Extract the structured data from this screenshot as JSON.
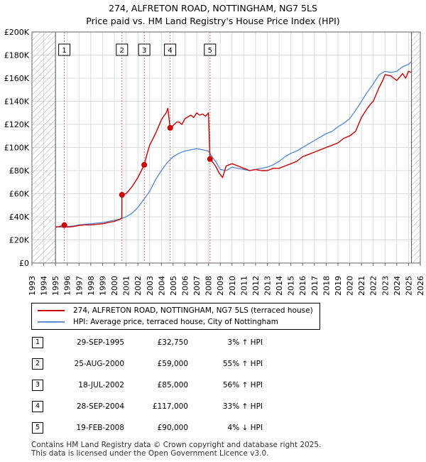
{
  "title": "274, ALFRETON ROAD, NOTTINGHAM, NG7 5LS",
  "subtitle": "Price paid vs. HM Land Registry's House Price Index (HPI)",
  "colors": {
    "property": "#cc0000",
    "hpi": "#5b8fd4",
    "grid": "#dddddd",
    "hatch": "#aaaaaa",
    "marker_line": "#e06070"
  },
  "chart_data": {
    "type": "line",
    "x_range": [
      1993.0,
      2026.0
    ],
    "ylim": [
      0,
      200000
    ],
    "y_ticks": [
      0,
      20000,
      40000,
      60000,
      80000,
      100000,
      120000,
      140000,
      160000,
      180000,
      200000
    ],
    "y_tick_labels": [
      "£0",
      "£20K",
      "£40K",
      "£60K",
      "£80K",
      "£100K",
      "£120K",
      "£140K",
      "£160K",
      "£180K",
      "£200K"
    ],
    "x_tick_labels": [
      "1993",
      "1994",
      "1995",
      "1996",
      "1997",
      "1998",
      "1999",
      "2000",
      "2001",
      "2002",
      "2003",
      "2004",
      "2005",
      "2006",
      "2007",
      "2008",
      "2009",
      "2010",
      "2011",
      "2012",
      "2013",
      "2014",
      "2015",
      "2016",
      "2017",
      "2018",
      "2019",
      "2020",
      "2021",
      "2022",
      "2023",
      "2024",
      "2025",
      "2026"
    ],
    "hatched_ranges": [
      [
        1993.0,
        1995.0
      ],
      [
        2025.25,
        2026.0
      ]
    ],
    "series": [
      {
        "name": "274, ALFRETON ROAD, NOTTINGHAM, NG7 5LS (terraced house)",
        "x": [
          1995.0,
          1995.3,
          1995.75,
          1996.0,
          1996.5,
          1997.0,
          1997.5,
          1998.0,
          1998.5,
          1999.0,
          1999.5,
          2000.0,
          2000.5,
          2000.64,
          2000.65,
          2001.0,
          2001.5,
          2002.0,
          2002.54,
          2002.8,
          2003.0,
          2003.5,
          2003.75,
          2004.0,
          2004.2,
          2004.4,
          2004.55,
          2004.74,
          2005.0,
          2005.3,
          2005.5,
          2005.75,
          2006.0,
          2006.5,
          2006.75,
          2007.0,
          2007.25,
          2007.5,
          2007.75,
          2008.0,
          2008.13,
          2008.3,
          2008.6,
          2008.9,
          2009.2,
          2009.5,
          2010.0,
          2010.5,
          2011.0,
          2011.5,
          2012.0,
          2012.5,
          2013.0,
          2013.5,
          2014.0,
          2014.5,
          2015.0,
          2015.5,
          2016.0,
          2016.5,
          2017.0,
          2017.5,
          2018.0,
          2018.5,
          2019.0,
          2019.5,
          2020.0,
          2020.5,
          2021.0,
          2021.5,
          2021.8,
          2022.0,
          2022.5,
          2022.8,
          2023.0,
          2023.5,
          2023.75,
          2024.0,
          2024.5,
          2024.75,
          2025.0,
          2025.2
        ],
        "y": [
          31000,
          31500,
          32750,
          31000,
          31500,
          32500,
          33000,
          33000,
          33500,
          34000,
          35000,
          36000,
          38000,
          39000,
          59000,
          60000,
          66000,
          74000,
          85000,
          95000,
          102000,
          112000,
          118000,
          124000,
          127000,
          130000,
          134000,
          117000,
          119000,
          122000,
          122000,
          120000,
          125000,
          128000,
          126000,
          130000,
          128000,
          129000,
          127000,
          130000,
          90000,
          88000,
          84000,
          78000,
          74000,
          84000,
          86000,
          84000,
          82000,
          80000,
          81000,
          80000,
          80000,
          82000,
          82000,
          84000,
          86000,
          88000,
          92000,
          94000,
          96000,
          98000,
          100000,
          102000,
          104000,
          108000,
          110000,
          114000,
          126000,
          134000,
          138000,
          140000,
          152000,
          158000,
          163000,
          162000,
          160000,
          158000,
          164000,
          160000,
          166000,
          165000
        ]
      },
      {
        "name": "HPI: Average price, terraced house, City of Nottingham",
        "x": [
          1995.0,
          1995.5,
          1996.0,
          1996.5,
          1997.0,
          1997.5,
          1998.0,
          1998.5,
          1999.0,
          1999.5,
          2000.0,
          2000.5,
          2001.0,
          2001.5,
          2002.0,
          2002.5,
          2003.0,
          2003.5,
          2004.0,
          2004.5,
          2005.0,
          2005.5,
          2006.0,
          2006.5,
          2007.0,
          2007.5,
          2008.0,
          2008.3,
          2008.6,
          2009.0,
          2009.5,
          2010.0,
          2010.5,
          2011.0,
          2011.5,
          2012.0,
          2012.5,
          2013.0,
          2013.5,
          2014.0,
          2014.5,
          2015.0,
          2015.5,
          2016.0,
          2016.5,
          2017.0,
          2017.5,
          2018.0,
          2018.5,
          2019.0,
          2019.5,
          2020.0,
          2020.5,
          2021.0,
          2021.5,
          2022.0,
          2022.5,
          2023.0,
          2023.5,
          2024.0,
          2024.5,
          2025.0,
          2025.2
        ],
        "y": [
          31500,
          31000,
          31500,
          32000,
          33000,
          33500,
          34000,
          34500,
          35000,
          36000,
          37000,
          38000,
          40000,
          43000,
          48000,
          55000,
          62000,
          72000,
          80000,
          87000,
          92000,
          95000,
          97000,
          98000,
          99000,
          98000,
          97000,
          92000,
          88000,
          81000,
          80000,
          83000,
          82000,
          81000,
          80000,
          81000,
          82000,
          83000,
          85000,
          88000,
          92000,
          95000,
          97000,
          100000,
          103000,
          106000,
          109000,
          112000,
          114000,
          118000,
          121000,
          125000,
          132000,
          140000,
          148000,
          155000,
          163000,
          166000,
          165000,
          166000,
          170000,
          172000,
          174000
        ]
      }
    ],
    "sales": [
      {
        "id": "1",
        "x": 1995.75,
        "y": 32750
      },
      {
        "id": "2",
        "x": 2000.65,
        "y": 59000
      },
      {
        "id": "3",
        "x": 2002.54,
        "y": 85000
      },
      {
        "id": "4",
        "x": 2004.74,
        "y": 117000
      },
      {
        "id": "5",
        "x": 2008.13,
        "y": 90000
      }
    ]
  },
  "legend": [
    {
      "label": "274, ALFRETON ROAD, NOTTINGHAM, NG7 5LS (terraced house)"
    },
    {
      "label": "HPI: Average price, terraced house, City of Nottingham"
    }
  ],
  "table": [
    {
      "num": "1",
      "date": "29-SEP-1995",
      "price": "£32,750",
      "hpi": "3% ↑ HPI"
    },
    {
      "num": "2",
      "date": "25-AUG-2000",
      "price": "£59,000",
      "hpi": "55% ↑ HPI"
    },
    {
      "num": "3",
      "date": "18-JUL-2002",
      "price": "£85,000",
      "hpi": "56% ↑ HPI"
    },
    {
      "num": "4",
      "date": "28-SEP-2004",
      "price": "£117,000",
      "hpi": "33% ↑ HPI"
    },
    {
      "num": "5",
      "date": "19-FEB-2008",
      "price": "£90,000",
      "hpi": "4% ↓ HPI"
    }
  ],
  "footer": [
    "Contains HM Land Registry data © Crown copyright and database right 2025.",
    "This data is licensed under the Open Government Licence v3.0."
  ]
}
